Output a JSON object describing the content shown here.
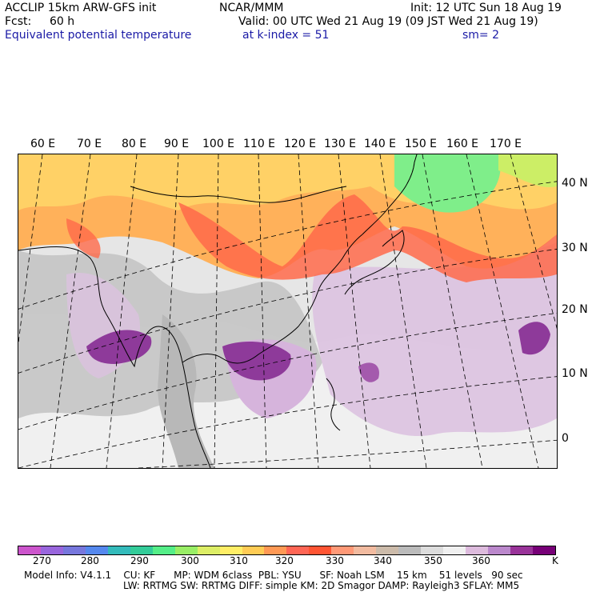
{
  "header": {
    "left_line1": "ACCLIP 15km ARW-GFS init",
    "center_line1": "NCAR/MMM",
    "right_line1": "Init: 12 UTC Sun 18 Aug 19",
    "fcst_label": "Fcst:",
    "fcst_value": "60 h",
    "valid": "Valid: 00 UTC Wed 21 Aug 19 (09 JST Wed 21 Aug 19)",
    "field": "Equivalent potential temperature",
    "level": "at k-index =  51",
    "smoothing": "sm= 2"
  },
  "map": {
    "lon_labels": [
      "60 E",
      "70 E",
      "80 E",
      "90 E",
      "100 E",
      "110 E",
      "120 E",
      "130 E",
      "140 E",
      "150 E",
      "160 E",
      "170 E"
    ],
    "lat_labels": [
      "40 N",
      "30 N",
      "20 N",
      "10 N",
      "0"
    ]
  },
  "colorbar": {
    "unit": "K",
    "colors": [
      "#cc55cc",
      "#9966dd",
      "#7777dd",
      "#5588ee",
      "#33bbbb",
      "#33cc99",
      "#55ee88",
      "#99ee66",
      "#ddee66",
      "#ffee66",
      "#ffcc55",
      "#ff9955",
      "#ff6655",
      "#ff5533",
      "#ff9977",
      "#f2bba0",
      "#ccbbaa",
      "#bbbbbb",
      "#dddddd",
      "#f0f0f0",
      "#ddbbdd",
      "#bb88cc",
      "#993399",
      "#770077"
    ],
    "ticks": [
      "270",
      "280",
      "290",
      "300",
      "310",
      "320",
      "330",
      "340",
      "350",
      "360"
    ]
  },
  "footer": {
    "line1": "Model Info: V4.1.1    CU: KF      MP: WDM 6class  PBL: YSU      SF: Noah LSM    15 km    51 levels   90 sec",
    "line2": "LW: RRTMG   SW: RRTMG   DIFF: simple KM: 2D Smagor DAMP: Rayleigh3  SFLAY: MM5"
  }
}
